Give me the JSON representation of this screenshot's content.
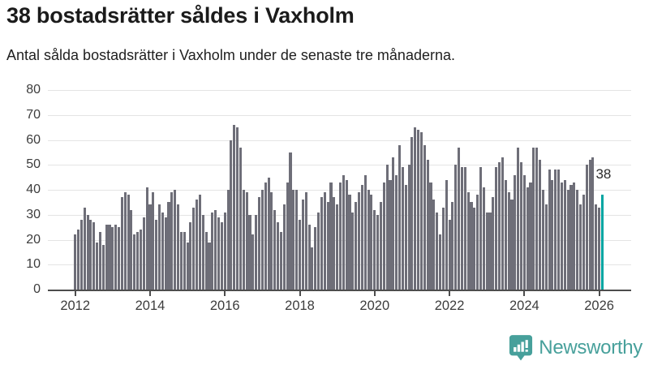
{
  "header": {
    "title": "38 bostadsrätter såldes i Vaxholm",
    "subtitle": "Antal sålda bostadsrätter i Vaxholm under de senaste tre månaderna."
  },
  "branding": {
    "name": "Newsworthy",
    "icon": "newsworthy-badge-icon"
  },
  "colors": {
    "bar": "#6e6e78",
    "highlight": "#00a5a2",
    "gridline": "#e4e4e4",
    "axis_line": "#4d4d4d",
    "tick_label": "#3c3c3c",
    "title_text": "#1b1b1b",
    "brand_teal": "#47a09b",
    "background": "#ffffff"
  },
  "chart_data": {
    "type": "bar",
    "title": "38 bostadsrätter såldes i Vaxholm",
    "subtitle": "Antal sålda bostadsrätter i Vaxholm under de senaste tre månaderna.",
    "xlabel": "",
    "ylabel": "",
    "x_unit": "month",
    "x_start": "2012-01",
    "x_end": "2026-02",
    "x_tick_labels": [
      "2012",
      "2014",
      "2016",
      "2018",
      "2020",
      "2022",
      "2024",
      "2026"
    ],
    "y_ticks": [
      0,
      10,
      20,
      30,
      40,
      50,
      60,
      70,
      80
    ],
    "ylim": [
      0,
      80
    ],
    "grid": "horizontal",
    "legend": "none",
    "annotation_label": "38",
    "highlight_last_value": 38,
    "values": [
      22,
      24,
      28,
      33,
      30,
      28,
      27,
      19,
      23,
      18,
      26,
      26,
      25,
      26,
      25,
      37,
      39,
      38,
      32,
      22,
      23,
      24,
      29,
      41,
      34,
      39,
      28,
      34,
      31,
      29,
      35,
      39,
      40,
      34,
      23,
      23,
      19,
      27,
      33,
      36,
      38,
      30,
      23,
      19,
      31,
      32,
      29,
      27,
      31,
      40,
      60,
      66,
      65,
      57,
      40,
      39,
      30,
      22,
      30,
      37,
      40,
      43,
      45,
      39,
      32,
      27,
      23,
      34,
      43,
      55,
      40,
      40,
      28,
      36,
      39,
      26,
      17,
      25,
      31,
      37,
      39,
      35,
      43,
      37,
      34,
      43,
      46,
      44,
      38,
      31,
      35,
      39,
      42,
      46,
      40,
      38,
      32,
      30,
      35,
      43,
      50,
      44,
      53,
      46,
      58,
      49,
      42,
      50,
      61,
      65,
      64,
      63,
      58,
      52,
      43,
      36,
      31,
      22,
      33,
      44,
      28,
      35,
      50,
      57,
      49,
      49,
      39,
      35,
      33,
      38,
      49,
      41,
      31,
      31,
      37,
      49,
      51,
      53,
      44,
      39,
      36,
      46,
      57,
      51,
      46,
      41,
      43,
      57,
      57,
      52,
      40,
      34,
      48,
      44,
      48,
      48,
      43,
      44,
      40,
      42,
      43,
      40,
      34,
      38,
      50,
      52,
      53,
      34,
      33,
      38
    ]
  }
}
